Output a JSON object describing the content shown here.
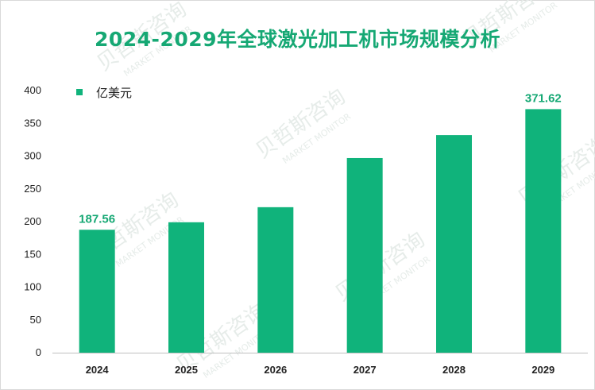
{
  "chart_data": {
    "type": "bar",
    "title": "2024-2029年全球激光加工机市场规模分析",
    "categories": [
      "2024",
      "2025",
      "2026",
      "2027",
      "2028",
      "2029"
    ],
    "series": [
      {
        "name": "亿美元",
        "values": [
          187.56,
          199,
          222,
          297,
          332,
          371.62
        ]
      }
    ],
    "data_labels": {
      "2024": "187.56",
      "2029": "371.62"
    },
    "ylim": [
      0,
      400
    ],
    "yticks": [
      0,
      50,
      100,
      150,
      200,
      250,
      300,
      350,
      400
    ],
    "grid": false,
    "legend_position": "top-left",
    "bar_color": "#10b37b",
    "label_color": "#16a874"
  },
  "watermark": {
    "cn": "贝哲斯咨询",
    "en": "MARKET MONITOR"
  }
}
